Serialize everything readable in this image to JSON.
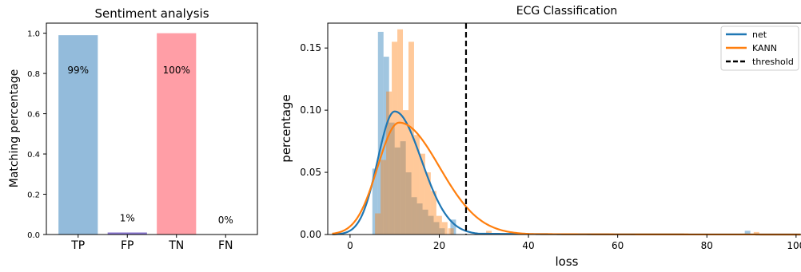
{
  "chart_data": [
    {
      "type": "bar",
      "title": "Sentiment analysis",
      "xlabel": "",
      "ylabel": "Matching percentage",
      "categories": [
        "TP",
        "FP",
        "TN",
        "FN"
      ],
      "values": [
        0.99,
        0.01,
        1.0,
        0.0
      ],
      "value_labels": [
        "99%",
        "1%",
        "100%",
        "0%"
      ],
      "colors": [
        "#93bbdb",
        "#8a78d0",
        "#ff9ea6",
        "#cccccc"
      ],
      "ylim": [
        0,
        1.05
      ],
      "yticks": [
        0.0,
        0.2,
        0.4,
        0.6,
        0.8,
        1.0
      ],
      "ytick_labels": [
        "0.0",
        "0.2",
        "0.4",
        "0.6",
        "0.8",
        "1.0"
      ],
      "grid": false
    },
    {
      "type": "area",
      "title": "ECG Classification",
      "xlabel": "loss",
      "ylabel": "percentage",
      "xlim": [
        -5,
        102
      ],
      "ylim": [
        0,
        0.17
      ],
      "xticks": [
        0,
        20,
        40,
        60,
        80,
        100
      ],
      "xtick_labels": [
        "0",
        "20",
        "40",
        "60",
        "80",
        "100"
      ],
      "yticks": [
        0.0,
        0.05,
        0.1,
        0.15
      ],
      "ytick_labels": [
        "0.00",
        "0.05",
        "0.10",
        "0.15"
      ],
      "grid": false,
      "legend_position": "top-right",
      "legend": [
        "net",
        "KANN",
        "threshold"
      ],
      "threshold": 26,
      "series": [
        {
          "name": "net",
          "color": "#1f77b4",
          "hist_bin_width": 1.25,
          "hist": [
            [
              5,
              0.053
            ],
            [
              6.25,
              0.163
            ],
            [
              7.5,
              0.143
            ],
            [
              8.75,
              0.09
            ],
            [
              10,
              0.07
            ],
            [
              11.25,
              0.075
            ],
            [
              12.5,
              0.05
            ],
            [
              13.75,
              0.03
            ],
            [
              15,
              0.025
            ],
            [
              16.25,
              0.02
            ],
            [
              17.5,
              0.015
            ],
            [
              18.75,
              0.01
            ],
            [
              20,
              0.005
            ],
            [
              22.5,
              0.012
            ],
            [
              88.5,
              0.003
            ]
          ],
          "kde_peak_x": 10,
          "kde_peak_y": 0.099,
          "kde_sigma_left": 3.8,
          "kde_sigma_right": 6.0,
          "kde_tail_level": 0.002
        },
        {
          "name": "KANN",
          "color": "#ff7f0e",
          "hist_bin_width": 1.25,
          "hist": [
            [
              5.6,
              0.017
            ],
            [
              6.85,
              0.06
            ],
            [
              8.1,
              0.115
            ],
            [
              9.35,
              0.155
            ],
            [
              10.6,
              0.165
            ],
            [
              11.85,
              0.1
            ],
            [
              13.1,
              0.155
            ],
            [
              14.35,
              0.08
            ],
            [
              15.6,
              0.065
            ],
            [
              16.85,
              0.05
            ],
            [
              18.1,
              0.035
            ],
            [
              19.35,
              0.015
            ],
            [
              20.6,
              0.01
            ],
            [
              22,
              0.005
            ],
            [
              30.5,
              0.003
            ],
            [
              90.5,
              0.002
            ]
          ],
          "kde_peak_x": 11,
          "kde_peak_y": 0.09,
          "kde_sigma_left": 4.8,
          "kde_sigma_right": 9.0,
          "kde_tail_level": 0.002
        }
      ]
    }
  ]
}
